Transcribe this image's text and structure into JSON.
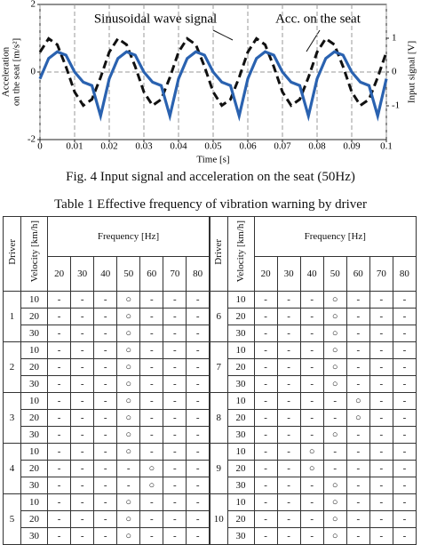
{
  "chart_data": {
    "type": "line",
    "xlabel": "Time [s]",
    "ylabel": [
      "Acceleration",
      "on the seat [m/s²]"
    ],
    "y2label": "Input signal [V]",
    "annotations": [
      "Sinusoidal wave signal",
      "Acc. on the seat"
    ],
    "x": [
      0,
      0.0025,
      0.005,
      0.0075,
      0.01,
      0.0125,
      0.015,
      0.0175,
      0.02,
      0.0225,
      0.025,
      0.0275,
      0.03,
      0.0325,
      0.035,
      0.0375,
      0.04,
      0.0425,
      0.045,
      0.0475,
      0.05,
      0.0525,
      0.055,
      0.0575,
      0.06,
      0.0625,
      0.065,
      0.0675,
      0.07,
      0.0725,
      0.075,
      0.0775,
      0.08,
      0.0825,
      0.085,
      0.0875,
      0.09,
      0.0925,
      0.095,
      0.0975,
      0.1
    ],
    "series": [
      {
        "name": "Sinusoidal wave signal",
        "color": "#111111",
        "dash": true,
        "axis": "y2",
        "values": [
          0.59,
          0.99,
          0.81,
          0.16,
          -0.59,
          -0.99,
          -0.81,
          -0.16,
          0.59,
          0.99,
          0.81,
          0.16,
          -0.59,
          -0.99,
          -0.81,
          -0.16,
          0.59,
          0.99,
          0.81,
          0.16,
          -0.59,
          -0.99,
          -0.81,
          -0.16,
          0.59,
          0.99,
          0.81,
          0.16,
          -0.59,
          -0.99,
          -0.81,
          -0.16,
          0.59,
          0.99,
          0.81,
          0.16,
          -0.59,
          -0.99,
          -0.81,
          -0.16,
          0.59
        ]
      },
      {
        "name": "Acc. on the seat",
        "color": "#2a62b0",
        "dash": false,
        "values": [
          -0.2,
          0.4,
          0.6,
          0.5,
          0,
          -0.3,
          -0.4,
          -1.3,
          -0.2,
          0.4,
          0.6,
          0.5,
          0,
          -0.3,
          -0.4,
          -1.3,
          -0.2,
          0.4,
          0.6,
          0.5,
          0,
          -0.3,
          -0.4,
          -1.3,
          -0.2,
          0.4,
          0.6,
          0.5,
          0,
          -0.3,
          -0.4,
          -1.3,
          -0.2,
          0.4,
          0.6,
          0.5,
          0,
          -0.3,
          -0.4,
          -1.3,
          -0.2
        ]
      }
    ],
    "xlim": [
      0,
      0.1
    ],
    "xticks": [
      0,
      0.01,
      0.02,
      0.03,
      0.04,
      0.05,
      0.06,
      0.07,
      0.08,
      0.09,
      0.1
    ],
    "ylim": [
      -2,
      2
    ],
    "yticks": [
      -2,
      0,
      2
    ],
    "y2lim": [
      -2,
      2
    ],
    "y2ticks": [
      -1,
      0,
      1
    ],
    "grid": true
  },
  "caption": "Fig. 4  Input signal and acceleration on the seat (50Hz)",
  "table": {
    "title": "Table 1  Effective frequency of vibration warning by driver",
    "driver_header": "Driver",
    "velocity_header": "Velocity [km/h]",
    "frequency_header": "Frequency [Hz]",
    "frequencies": [
      "20",
      "30",
      "40",
      "50",
      "60",
      "70",
      "80"
    ],
    "groups": [
      {
        "driver": "1",
        "rows": [
          {
            "velocity": "10",
            "cells": [
              "-",
              "-",
              "-",
              "○",
              "-",
              "-",
              "-"
            ]
          },
          {
            "velocity": "20",
            "cells": [
              "-",
              "-",
              "-",
              "○",
              "-",
              "-",
              "-"
            ]
          },
          {
            "velocity": "30",
            "cells": [
              "-",
              "-",
              "-",
              "○",
              "-",
              "-",
              "-"
            ]
          }
        ]
      },
      {
        "driver": "2",
        "rows": [
          {
            "velocity": "10",
            "cells": [
              "-",
              "-",
              "-",
              "○",
              "-",
              "-",
              "-"
            ]
          },
          {
            "velocity": "20",
            "cells": [
              "-",
              "-",
              "-",
              "○",
              "-",
              "-",
              "-"
            ]
          },
          {
            "velocity": "30",
            "cells": [
              "-",
              "-",
              "-",
              "○",
              "-",
              "-",
              "-"
            ]
          }
        ]
      },
      {
        "driver": "3",
        "rows": [
          {
            "velocity": "10",
            "cells": [
              "-",
              "-",
              "-",
              "○",
              "-",
              "-",
              "-"
            ]
          },
          {
            "velocity": "20",
            "cells": [
              "-",
              "-",
              "-",
              "○",
              "-",
              "-",
              "-"
            ]
          },
          {
            "velocity": "30",
            "cells": [
              "-",
              "-",
              "-",
              "○",
              "-",
              "-",
              "-"
            ]
          }
        ]
      },
      {
        "driver": "4",
        "rows": [
          {
            "velocity": "10",
            "cells": [
              "-",
              "-",
              "-",
              "○",
              "-",
              "-",
              "-"
            ]
          },
          {
            "velocity": "20",
            "cells": [
              "-",
              "-",
              "-",
              "-",
              "○",
              "-",
              "-"
            ]
          },
          {
            "velocity": "30",
            "cells": [
              "-",
              "-",
              "-",
              "-",
              "○",
              "-",
              "-"
            ]
          }
        ]
      },
      {
        "driver": "5",
        "rows": [
          {
            "velocity": "10",
            "cells": [
              "-",
              "-",
              "-",
              "○",
              "-",
              "-",
              "-"
            ]
          },
          {
            "velocity": "20",
            "cells": [
              "-",
              "-",
              "-",
              "○",
              "-",
              "-",
              "-"
            ]
          },
          {
            "velocity": "30",
            "cells": [
              "-",
              "-",
              "-",
              "○",
              "-",
              "-",
              "-"
            ]
          }
        ]
      },
      {
        "driver": "6",
        "rows": [
          {
            "velocity": "10",
            "cells": [
              "-",
              "-",
              "-",
              "○",
              "-",
              "-",
              "-"
            ]
          },
          {
            "velocity": "20",
            "cells": [
              "-",
              "-",
              "-",
              "○",
              "-",
              "-",
              "-"
            ]
          },
          {
            "velocity": "30",
            "cells": [
              "-",
              "-",
              "-",
              "○",
              "-",
              "-",
              "-"
            ]
          }
        ]
      },
      {
        "driver": "7",
        "rows": [
          {
            "velocity": "10",
            "cells": [
              "-",
              "-",
              "-",
              "○",
              "-",
              "-",
              "-"
            ]
          },
          {
            "velocity": "20",
            "cells": [
              "-",
              "-",
              "-",
              "○",
              "-",
              "-",
              "-"
            ]
          },
          {
            "velocity": "30",
            "cells": [
              "-",
              "-",
              "-",
              "○",
              "-",
              "-",
              "-"
            ]
          }
        ]
      },
      {
        "driver": "8",
        "rows": [
          {
            "velocity": "10",
            "cells": [
              "-",
              "-",
              "-",
              "-",
              "○",
              "-",
              "-"
            ]
          },
          {
            "velocity": "20",
            "cells": [
              "-",
              "-",
              "-",
              "-",
              "○",
              "-",
              "-"
            ]
          },
          {
            "velocity": "30",
            "cells": [
              "-",
              "-",
              "-",
              "○",
              "-",
              "-",
              "-"
            ]
          }
        ]
      },
      {
        "driver": "9",
        "rows": [
          {
            "velocity": "10",
            "cells": [
              "-",
              "-",
              "○",
              "-",
              "-",
              "-",
              "-"
            ]
          },
          {
            "velocity": "20",
            "cells": [
              "-",
              "-",
              "○",
              "-",
              "-",
              "-",
              "-"
            ]
          },
          {
            "velocity": "30",
            "cells": [
              "-",
              "-",
              "-",
              "○",
              "-",
              "-",
              "-"
            ]
          }
        ]
      },
      {
        "driver": "10",
        "rows": [
          {
            "velocity": "10",
            "cells": [
              "-",
              "-",
              "-",
              "○",
              "-",
              "-",
              "-"
            ]
          },
          {
            "velocity": "20",
            "cells": [
              "-",
              "-",
              "-",
              "○",
              "-",
              "-",
              "-"
            ]
          },
          {
            "velocity": "30",
            "cells": [
              "-",
              "-",
              "-",
              "○",
              "-",
              "-",
              "-"
            ]
          }
        ]
      }
    ]
  }
}
